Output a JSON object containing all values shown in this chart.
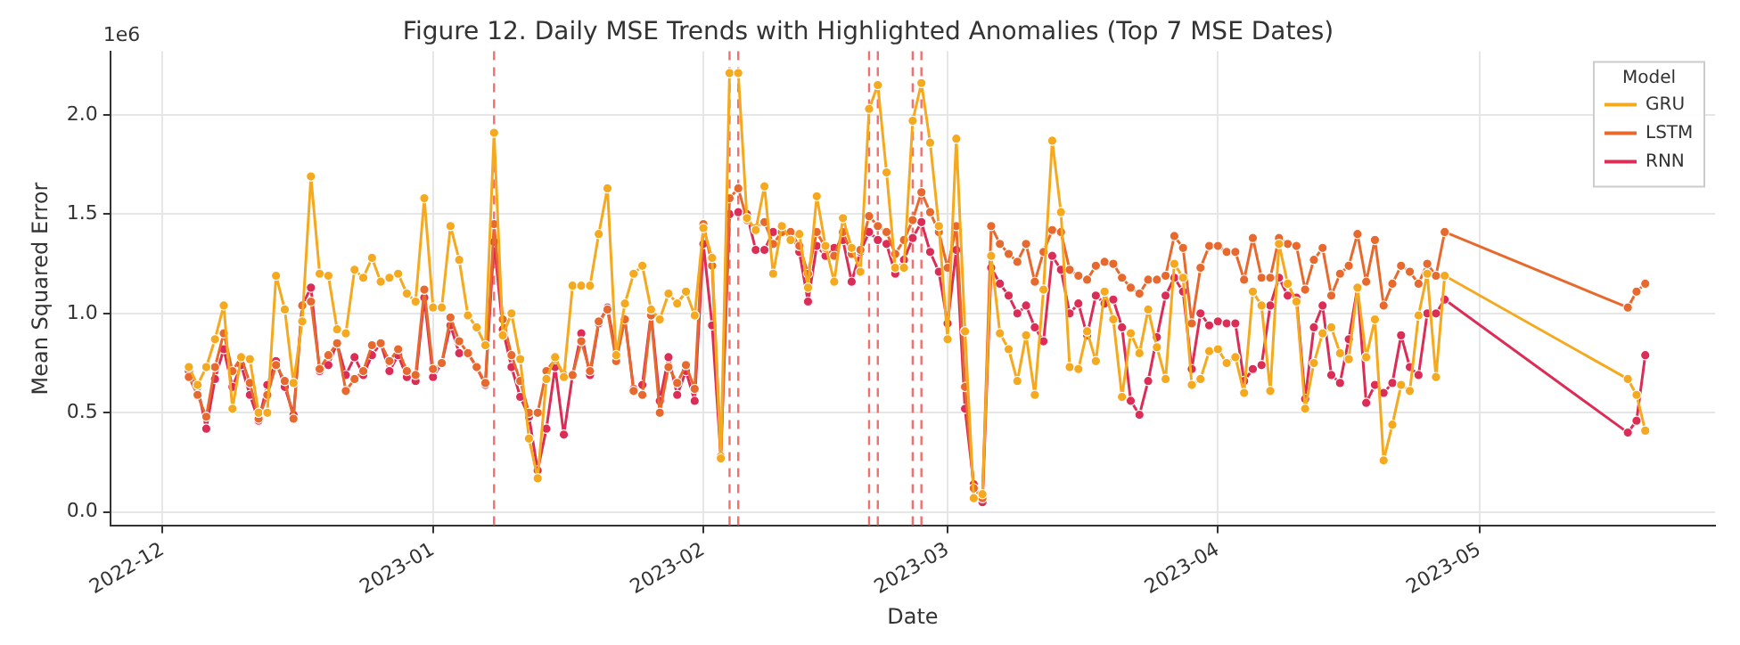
{
  "chart_data": {
    "type": "line",
    "title": "Figure 12. Daily MSE Trends with Highlighted Anomalies (Top 7 MSE Dates)",
    "xlabel": "Date",
    "ylabel": "Mean Squared Error",
    "legend_title": "Model",
    "annotations": [
      "1e6"
    ],
    "x": [
      "2022-12-04",
      "2022-12-05",
      "2022-12-06",
      "2022-12-07",
      "2022-12-08",
      "2022-12-09",
      "2022-12-10",
      "2022-12-11",
      "2022-12-12",
      "2022-12-13",
      "2022-12-14",
      "2022-12-15",
      "2022-12-16",
      "2022-12-17",
      "2022-12-18",
      "2022-12-19",
      "2022-12-20",
      "2022-12-21",
      "2022-12-22",
      "2022-12-23",
      "2022-12-24",
      "2022-12-25",
      "2022-12-26",
      "2022-12-27",
      "2022-12-28",
      "2022-12-29",
      "2022-12-30",
      "2022-12-31",
      "2023-01-01",
      "2023-01-02",
      "2023-01-03",
      "2023-01-04",
      "2023-01-05",
      "2023-01-06",
      "2023-01-07",
      "2023-01-08",
      "2023-01-09",
      "2023-01-10",
      "2023-01-11",
      "2023-01-12",
      "2023-01-13",
      "2023-01-14",
      "2023-01-15",
      "2023-01-16",
      "2023-01-17",
      "2023-01-18",
      "2023-01-19",
      "2023-01-20",
      "2023-01-21",
      "2023-01-22",
      "2023-01-23",
      "2023-01-24",
      "2023-01-25",
      "2023-01-26",
      "2023-01-27",
      "2023-01-28",
      "2023-01-29",
      "2023-01-30",
      "2023-01-31",
      "2023-02-01",
      "2023-02-02",
      "2023-02-03",
      "2023-02-04",
      "2023-02-05",
      "2023-02-06",
      "2023-02-07",
      "2023-02-08",
      "2023-02-09",
      "2023-02-10",
      "2023-02-11",
      "2023-02-12",
      "2023-02-13",
      "2023-02-14",
      "2023-02-15",
      "2023-02-16",
      "2023-02-17",
      "2023-02-18",
      "2023-02-19",
      "2023-02-20",
      "2023-02-21",
      "2023-02-22",
      "2023-02-23",
      "2023-02-24",
      "2023-02-25",
      "2023-02-26",
      "2023-02-27",
      "2023-02-28",
      "2023-03-01",
      "2023-03-02",
      "2023-03-03",
      "2023-03-04",
      "2023-03-05",
      "2023-03-06",
      "2023-03-07",
      "2023-03-08",
      "2023-03-09",
      "2023-03-10",
      "2023-03-11",
      "2023-03-12",
      "2023-03-13",
      "2023-03-14",
      "2023-03-15",
      "2023-03-16",
      "2023-03-17",
      "2023-03-18",
      "2023-03-19",
      "2023-03-20",
      "2023-03-21",
      "2023-03-22",
      "2023-03-23",
      "2023-03-24",
      "2023-03-25",
      "2023-03-26",
      "2023-03-27",
      "2023-03-28",
      "2023-03-29",
      "2023-03-30",
      "2023-03-31",
      "2023-04-01",
      "2023-04-02",
      "2023-04-03",
      "2023-04-04",
      "2023-04-05",
      "2023-04-06",
      "2023-04-07",
      "2023-04-08",
      "2023-04-09",
      "2023-04-10",
      "2023-04-11",
      "2023-04-12",
      "2023-04-13",
      "2023-04-14",
      "2023-04-15",
      "2023-04-16",
      "2023-04-17",
      "2023-04-18",
      "2023-04-19",
      "2023-04-20",
      "2023-04-21",
      "2023-04-22",
      "2023-04-23",
      "2023-04-24",
      "2023-04-25",
      "2023-04-26",
      "2023-04-27",
      "2023-05-18",
      "2023-05-19",
      "2023-05-20"
    ],
    "series": [
      {
        "name": "GRU",
        "color": "#f5a91e",
        "values": [
          0.73,
          0.64,
          0.73,
          0.87,
          1.04,
          0.52,
          0.78,
          0.77,
          0.5,
          0.5,
          1.19,
          1.02,
          0.65,
          0.96,
          1.69,
          1.2,
          1.19,
          0.92,
          0.9,
          1.22,
          1.18,
          1.28,
          1.16,
          1.18,
          1.2,
          1.1,
          1.06,
          1.58,
          1.03,
          1.03,
          1.44,
          1.27,
          0.99,
          0.93,
          0.84,
          1.91,
          0.89,
          1.0,
          0.77,
          0.37,
          0.17,
          0.67,
          0.78,
          0.68,
          1.14,
          1.14,
          1.14,
          1.4,
          1.63,
          0.79,
          1.05,
          1.2,
          1.24,
          1.02,
          0.97,
          1.1,
          1.05,
          1.11,
          0.99,
          1.43,
          1.28,
          0.27,
          2.21,
          2.21,
          1.48,
          1.42,
          1.64,
          1.2,
          1.44,
          1.37,
          1.4,
          1.13,
          1.59,
          1.34,
          1.16,
          1.48,
          1.33,
          1.21,
          2.03,
          2.15,
          1.71,
          1.23,
          1.23,
          1.97,
          2.16,
          1.86,
          1.44,
          0.87,
          1.88,
          0.91,
          0.07,
          0.09,
          1.29,
          0.9,
          0.82,
          0.66,
          0.89,
          0.59,
          1.12,
          1.87,
          1.51,
          0.73,
          0.72,
          0.91,
          0.76,
          1.11,
          0.97,
          0.58,
          0.9,
          0.8,
          1.02,
          0.83,
          0.67,
          1.25,
          1.18,
          0.64,
          0.67,
          0.81,
          0.82,
          0.75,
          0.78,
          0.6,
          1.11,
          1.04,
          0.61,
          1.35,
          1.15,
          1.06,
          0.52,
          0.75,
          0.9,
          0.93,
          0.8,
          0.77,
          1.13,
          0.78,
          0.97,
          0.26,
          0.44,
          0.64,
          0.61,
          0.99,
          1.2,
          0.68,
          1.19,
          0.67,
          0.59,
          0.41
        ]
      },
      {
        "name": "LSTM",
        "color": "#e8692d",
        "values": [
          0.68,
          0.59,
          0.48,
          0.73,
          0.9,
          0.71,
          0.78,
          0.65,
          0.47,
          0.59,
          0.74,
          0.66,
          0.47,
          1.04,
          1.06,
          0.72,
          0.79,
          0.85,
          0.61,
          0.67,
          0.71,
          0.84,
          0.85,
          0.76,
          0.82,
          0.71,
          0.69,
          1.12,
          0.72,
          0.75,
          0.98,
          0.86,
          0.8,
          0.73,
          0.65,
          1.45,
          0.97,
          0.79,
          0.66,
          0.5,
          0.5,
          0.71,
          0.77,
          0.69,
          0.69,
          0.86,
          0.71,
          0.96,
          1.02,
          0.76,
          0.97,
          0.61,
          0.59,
          0.99,
          0.5,
          0.73,
          0.65,
          0.74,
          0.62,
          1.45,
          1.24,
          0.28,
          1.58,
          1.63,
          1.47,
          1.43,
          1.46,
          1.35,
          1.41,
          1.41,
          1.34,
          1.2,
          1.41,
          1.33,
          1.29,
          1.41,
          1.3,
          1.32,
          1.49,
          1.44,
          1.41,
          1.3,
          1.37,
          1.47,
          1.61,
          1.51,
          1.41,
          1.23,
          1.44,
          0.63,
          0.12,
          0.07,
          1.44,
          1.35,
          1.3,
          1.26,
          1.35,
          1.16,
          1.31,
          1.42,
          1.41,
          1.22,
          1.19,
          1.17,
          1.24,
          1.26,
          1.25,
          1.18,
          1.13,
          1.1,
          1.17,
          1.17,
          1.19,
          1.39,
          1.33,
          0.95,
          1.23,
          1.34,
          1.34,
          1.31,
          1.31,
          1.17,
          1.38,
          1.18,
          1.18,
          1.38,
          1.35,
          1.34,
          1.12,
          1.27,
          1.33,
          1.09,
          1.2,
          1.24,
          1.4,
          1.16,
          1.37,
          1.04,
          1.15,
          1.24,
          1.21,
          1.15,
          1.25,
          1.19,
          1.41,
          1.03,
          1.11,
          1.15
        ]
      },
      {
        "name": "RNN",
        "color": "#dc2d56",
        "values": [
          0.71,
          0.63,
          0.42,
          0.67,
          0.82,
          0.63,
          0.74,
          0.59,
          0.46,
          0.64,
          0.76,
          0.63,
          0.49,
          1.04,
          1.13,
          0.71,
          0.74,
          0.85,
          0.69,
          0.78,
          0.69,
          0.79,
          0.85,
          0.71,
          0.79,
          0.68,
          0.66,
          1.08,
          0.68,
          0.75,
          0.94,
          0.8,
          0.8,
          0.73,
          0.64,
          1.36,
          0.92,
          0.73,
          0.58,
          0.48,
          0.21,
          0.42,
          0.73,
          0.39,
          0.69,
          0.9,
          0.69,
          0.95,
          1.03,
          0.8,
          0.97,
          0.62,
          0.64,
          1.0,
          0.56,
          0.78,
          0.59,
          0.71,
          0.56,
          1.35,
          0.94,
          0.28,
          1.5,
          1.51,
          1.5,
          1.32,
          1.32,
          1.41,
          1.41,
          1.41,
          1.31,
          1.06,
          1.34,
          1.29,
          1.33,
          1.37,
          1.16,
          1.31,
          1.41,
          1.37,
          1.35,
          1.2,
          1.27,
          1.38,
          1.46,
          1.31,
          1.21,
          0.95,
          1.32,
          0.52,
          0.14,
          0.05,
          1.23,
          1.15,
          1.09,
          1.0,
          1.04,
          0.93,
          0.86,
          1.29,
          1.22,
          1.0,
          1.05,
          0.89,
          1.09,
          1.05,
          1.07,
          0.93,
          0.56,
          0.49,
          0.66,
          0.88,
          1.09,
          1.18,
          1.11,
          0.72,
          1.0,
          0.94,
          0.96,
          0.95,
          0.95,
          0.66,
          0.72,
          0.74,
          1.04,
          1.18,
          1.09,
          1.08,
          0.57,
          0.93,
          1.04,
          0.69,
          0.65,
          0.87,
          1.13,
          0.55,
          0.64,
          0.6,
          0.65,
          0.89,
          0.73,
          0.69,
          1.0,
          1.0,
          1.07,
          0.4,
          0.46,
          0.79
        ]
      }
    ],
    "ref_lines": [
      {
        "axis": "x",
        "value": "2023-01-08",
        "color": "#f07070",
        "line_style": "dashed"
      },
      {
        "axis": "x",
        "value": "2023-02-04",
        "color": "#f07070",
        "line_style": "dashed"
      },
      {
        "axis": "x",
        "value": "2023-02-05",
        "color": "#f07070",
        "line_style": "dashed"
      },
      {
        "axis": "x",
        "value": "2023-02-20",
        "color": "#f07070",
        "line_style": "dashed"
      },
      {
        "axis": "x",
        "value": "2023-02-21",
        "color": "#f07070",
        "line_style": "dashed"
      },
      {
        "axis": "x",
        "value": "2023-02-25",
        "color": "#f07070",
        "line_style": "dashed"
      },
      {
        "axis": "x",
        "value": "2023-02-26",
        "color": "#f07070",
        "line_style": "dashed"
      }
    ],
    "xlim": [
      "2022-11-25",
      "2023-05-28"
    ],
    "xticks": [
      "2022-12",
      "2023-01",
      "2023-02",
      "2023-03",
      "2023-04",
      "2023-05"
    ],
    "ylim": [
      -0.07,
      2.32
    ],
    "yticks": [
      {
        "value": 0,
        "label": "0.0"
      },
      0.5,
      {
        "value": 1,
        "label": "1.0"
      },
      1.5,
      {
        "value": 2,
        "label": "2.0"
      }
    ],
    "grid": true,
    "legend": "top right",
    "marker": "circle",
    "line_style": "solid"
  }
}
